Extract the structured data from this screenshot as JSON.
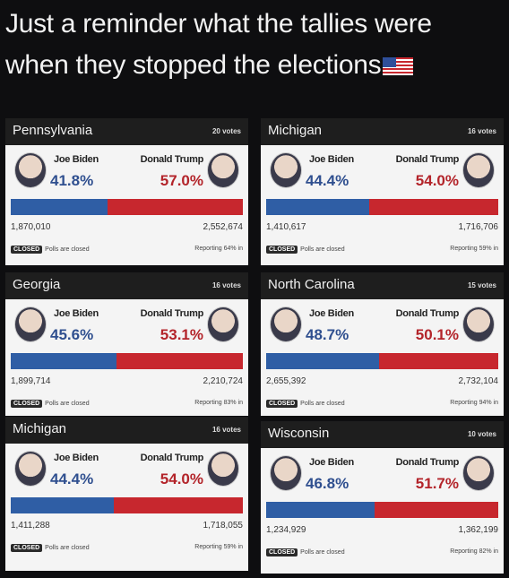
{
  "caption": {
    "line1": "Just a reminder what the tallies were",
    "line2": "when they stopped the elections"
  },
  "colors": {
    "biden": "#2f5ea5",
    "trump": "#c7272e",
    "header": "#1e1e1e"
  },
  "cards": [
    {
      "state": "Pennsylvania",
      "votes": "20 votes",
      "biden_name": "Joe Biden",
      "trump_name": "Donald Trump",
      "biden_pct": "41.8%",
      "trump_pct": "57.0%",
      "biden_count": "1,870,010",
      "trump_count": "2,552,674",
      "closed_badge": "CLOSED",
      "closed_text": "Polls are closed",
      "reporting": "Reporting 64% in",
      "biden_share": 41.8
    },
    {
      "state": "Michigan",
      "votes": "16 votes",
      "biden_name": "Joe Biden",
      "trump_name": "Donald Trump",
      "biden_pct": "44.4%",
      "trump_pct": "54.0%",
      "biden_count": "1,410,617",
      "trump_count": "1,716,706",
      "closed_badge": "CLOSED",
      "closed_text": "Polls are closed",
      "reporting": "Reporting 59% in",
      "biden_share": 44.4
    },
    {
      "state": "Georgia",
      "votes": "16 votes",
      "biden_name": "Joe Biden",
      "trump_name": "Donald Trump",
      "biden_pct": "45.6%",
      "trump_pct": "53.1%",
      "biden_count": "1,899,714",
      "trump_count": "2,210,724",
      "closed_badge": "CLOSED",
      "closed_text": "Polls are closed",
      "reporting": "Reporting 83% in",
      "biden_share": 45.6
    },
    {
      "state": "North Carolina",
      "votes": "15 votes",
      "biden_name": "Joe Biden",
      "trump_name": "Donald Trump",
      "biden_pct": "48.7%",
      "trump_pct": "50.1%",
      "biden_count": "2,655,392",
      "trump_count": "2,732,104",
      "closed_badge": "CLOSED",
      "closed_text": "Polls are closed",
      "reporting": "Reporting 94% in",
      "biden_share": 48.7
    },
    {
      "state": "Michigan",
      "votes": "16 votes",
      "biden_name": "Joe Biden",
      "trump_name": "Donald Trump",
      "biden_pct": "44.4%",
      "trump_pct": "54.0%",
      "biden_count": "1,411,288",
      "trump_count": "1,718,055",
      "closed_badge": "CLOSED",
      "closed_text": "Polls are closed",
      "reporting": "Reporting 59% in",
      "biden_share": 44.4
    },
    {
      "state": "Wisconsin",
      "votes": "10 votes",
      "biden_name": "Joe Biden",
      "trump_name": "Donald Trump",
      "biden_pct": "46.8%",
      "trump_pct": "51.7%",
      "biden_count": "1,234,929",
      "trump_count": "1,362,199",
      "closed_badge": "CLOSED",
      "closed_text": "Polls are closed",
      "reporting": "Reporting 82% in",
      "biden_share": 46.8
    }
  ]
}
